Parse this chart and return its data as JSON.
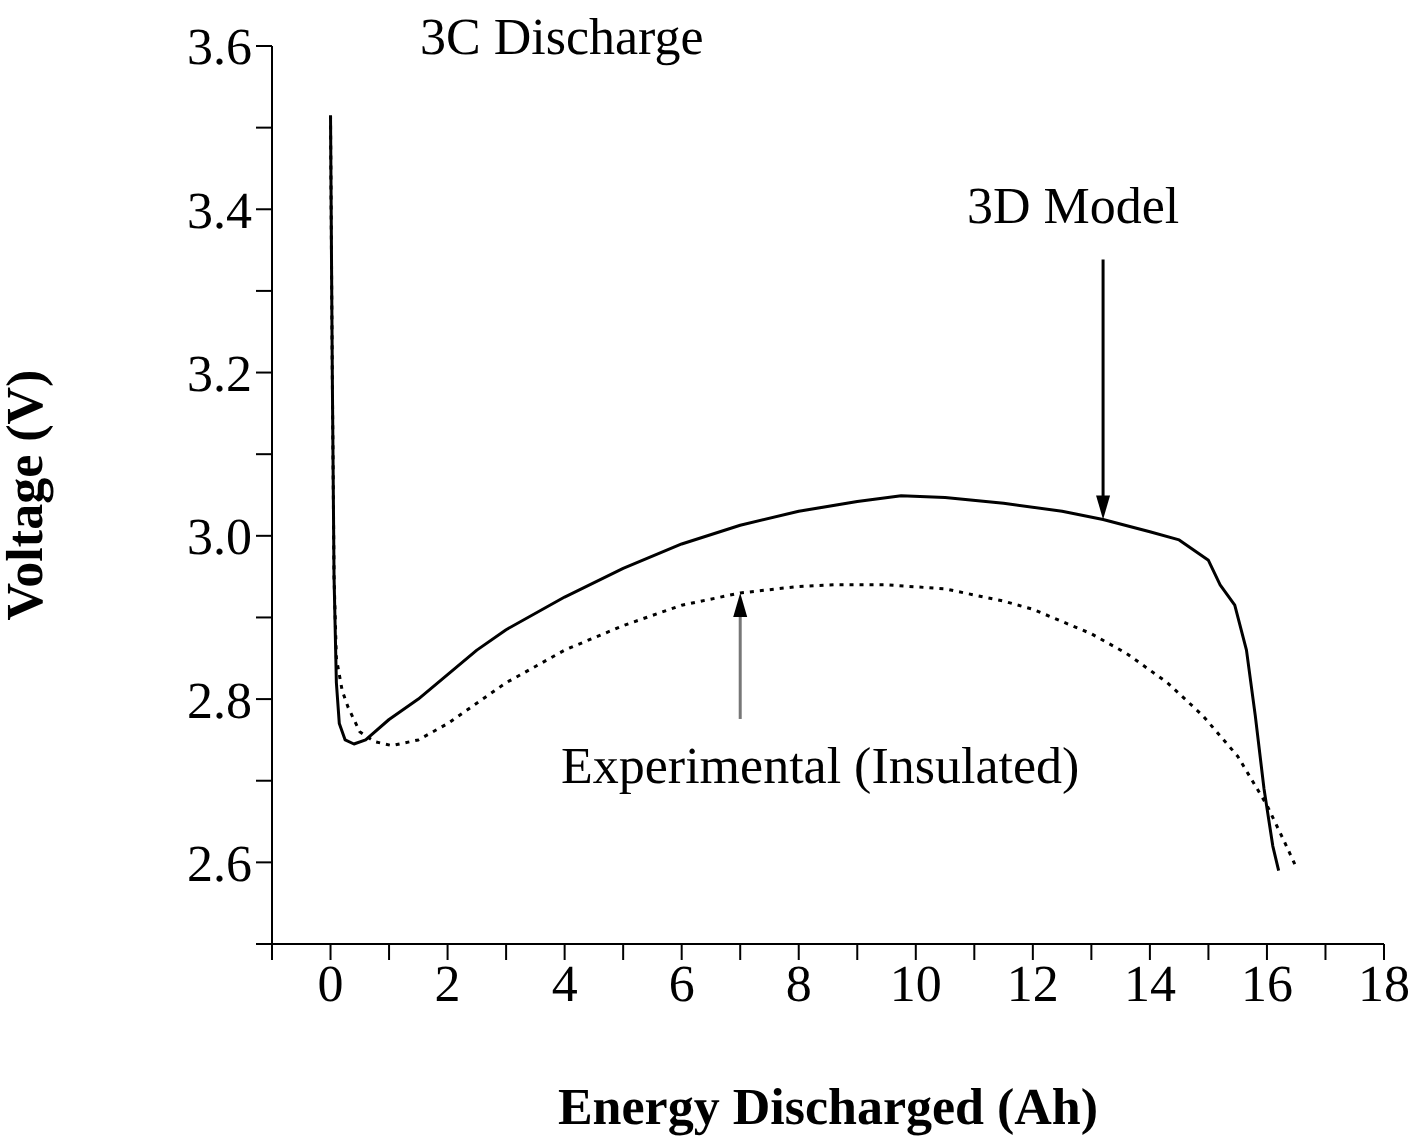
{
  "chart_data": {
    "type": "line",
    "xlabel": "Energy Discharged (Ah)",
    "ylabel": "Voltage (V)",
    "xlim": [
      -1,
      18
    ],
    "ylim": [
      2.5,
      3.6
    ],
    "xticks": [
      {
        "value": -1,
        "label": null
      },
      0,
      {
        "value": 1,
        "label": null
      },
      2,
      {
        "value": 3,
        "label": null
      },
      4,
      {
        "value": 5,
        "label": null
      },
      6,
      {
        "value": 7,
        "label": null
      },
      8,
      {
        "value": 9,
        "label": null
      },
      10,
      {
        "value": 11,
        "label": null
      },
      12,
      {
        "value": 13,
        "label": null
      },
      14,
      {
        "value": 15,
        "label": null
      },
      16,
      {
        "value": 17,
        "label": null
      },
      18
    ],
    "yticks": [
      {
        "value": 2.5,
        "label": null
      },
      {
        "value": 2.6,
        "label": "2.6"
      },
      {
        "value": 2.7,
        "label": null
      },
      {
        "value": 2.8,
        "label": "2.8"
      },
      {
        "value": 2.9,
        "label": null
      },
      {
        "value": 3.0,
        "label": "3.0"
      },
      {
        "value": 3.1,
        "label": null
      },
      {
        "value": 3.2,
        "label": "3.2"
      },
      {
        "value": 3.3,
        "label": null
      },
      {
        "value": 3.4,
        "label": "3.4"
      },
      {
        "value": 3.5,
        "label": null
      },
      {
        "value": 3.6,
        "label": "3.6"
      }
    ],
    "marker": "none",
    "series": [
      {
        "color": "#000000",
        "line_style": "solid",
        "x": [
          0,
          0.03,
          0.06,
          0.1,
          0.15,
          0.25,
          0.4,
          0.6,
          1,
          1.5,
          2,
          2.5,
          3,
          4,
          5,
          6,
          7,
          8,
          9,
          9.75,
          10.5,
          11.5,
          12.5,
          13.2,
          14,
          14.5,
          15,
          15.2,
          15.45,
          15.65,
          15.8,
          15.95,
          16.1,
          16.2
        ],
        "values": [
          3.515,
          3.2,
          2.95,
          2.82,
          2.77,
          2.75,
          2.745,
          2.75,
          2.775,
          2.8,
          2.83,
          2.86,
          2.885,
          2.925,
          2.96,
          2.99,
          3.013,
          3.03,
          3.042,
          3.049,
          3.047,
          3.04,
          3.03,
          3.02,
          3.005,
          2.995,
          2.97,
          2.94,
          2.915,
          2.86,
          2.78,
          2.69,
          2.62,
          2.59
        ]
      },
      {
        "color": "#000000",
        "line_style": "dotted",
        "x": [
          0,
          0.03,
          0.06,
          0.1,
          0.2,
          0.3,
          0.5,
          0.75,
          1.05,
          1.5,
          2,
          3,
          4,
          5,
          6,
          7,
          8,
          8.6,
          9.5,
          10.5,
          11.5,
          12,
          13,
          13.6,
          14.3,
          14.9,
          15.5,
          16,
          16.3,
          16.5
        ],
        "values": [
          3.515,
          3.2,
          2.95,
          2.85,
          2.81,
          2.79,
          2.76,
          2.748,
          2.743,
          2.75,
          2.77,
          2.82,
          2.86,
          2.89,
          2.915,
          2.93,
          2.938,
          2.94,
          2.94,
          2.935,
          2.92,
          2.91,
          2.88,
          2.856,
          2.82,
          2.78,
          2.73,
          2.67,
          2.625,
          2.594
        ]
      }
    ],
    "annotations": [
      "3C Discharge",
      {
        "text": "3D Model",
        "x": 13.2,
        "y": 3.02
      },
      {
        "text": "Experimental (Insulated)",
        "x": 7,
        "y": 2.93
      }
    ]
  }
}
